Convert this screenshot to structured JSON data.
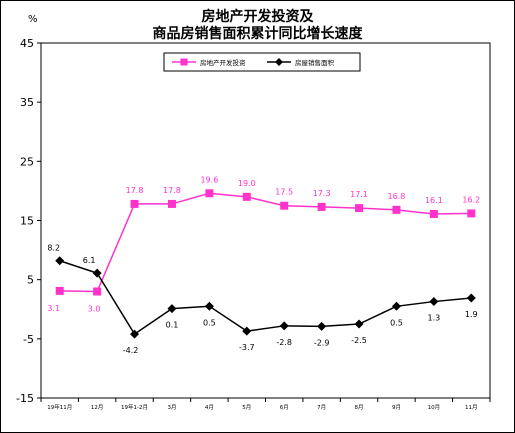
{
  "chart_data": {
    "type": "line",
    "title_lines": [
      "房地产开发投资及",
      "商品房销售面积累计同比增长速度"
    ],
    "yunit": "%",
    "ylim": [
      -15,
      45
    ],
    "yticks": [
      45,
      35,
      25,
      15,
      5,
      -5,
      -15
    ],
    "categories": [
      "19年11月",
      "12月",
      "19年1-2月",
      "3月",
      "4月",
      "5月",
      "6月",
      "7月",
      "8月",
      "9月",
      "10月",
      "11月"
    ],
    "series": [
      {
        "name": "房地产开发投资",
        "color": "#ff33cc",
        "marker": "square",
        "values": [
          3.1,
          3.0,
          17.8,
          17.8,
          19.6,
          19.0,
          17.5,
          17.3,
          17.1,
          16.8,
          16.1,
          16.2
        ],
        "labels": [
          "3.1",
          "3.0",
          "17.8",
          "17.8",
          "19.6",
          "19.0",
          "17.5",
          "17.3",
          "17.1",
          "16.8",
          "16.1",
          "16.2"
        ]
      },
      {
        "name": "房屋销售面积",
        "color": "#000000",
        "marker": "diamond",
        "values": [
          8.2,
          6.1,
          -4.2,
          0.1,
          0.5,
          -3.7,
          -2.8,
          -2.9,
          -2.5,
          0.5,
          1.3,
          1.9
        ],
        "labels": [
          "8.2",
          "6.1",
          "-4.2",
          "0.1",
          "0.5",
          "-3.7",
          "-2.8",
          "-2.9",
          "-2.5",
          "0.5",
          "1.3",
          "1.9"
        ]
      }
    ],
    "legend": {
      "position": "top-center",
      "box": true
    },
    "grid": false
  }
}
